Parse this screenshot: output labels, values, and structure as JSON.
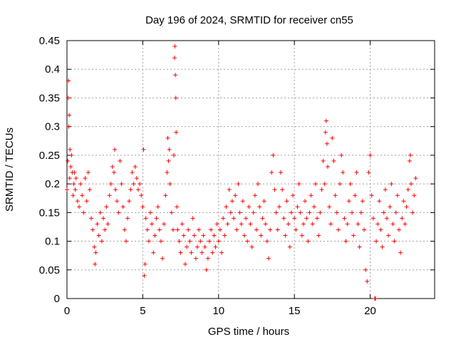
{
  "chart_data": {
    "type": "scatter",
    "title": "Day 196 of 2024, SRMTID for receiver cn55",
    "xlabel": "GPS time / hours",
    "ylabel": "SRMTID / TECUs",
    "xlim": [
      0,
      24.25
    ],
    "ylim": [
      0,
      0.45
    ],
    "xticks": [
      0,
      5,
      10,
      15,
      20
    ],
    "yticks": [
      0,
      0.05,
      0.1,
      0.15,
      0.2,
      0.25,
      0.3,
      0.35,
      0.4,
      0.45
    ],
    "grid": true,
    "marker": "+",
    "color": "#ff0000",
    "series": [
      {
        "name": "SRMTID",
        "points": [
          [
            0.0,
            0.19
          ],
          [
            0.05,
            0.24
          ],
          [
            0.08,
            0.35
          ],
          [
            0.1,
            0.38
          ],
          [
            0.12,
            0.3
          ],
          [
            0.15,
            0.32
          ],
          [
            0.18,
            0.21
          ],
          [
            0.2,
            0.26
          ],
          [
            0.25,
            0.23
          ],
          [
            0.3,
            0.25
          ],
          [
            0.35,
            0.22
          ],
          [
            0.4,
            0.18
          ],
          [
            0.45,
            0.2
          ],
          [
            0.5,
            0.22
          ],
          [
            0.55,
            0.19
          ],
          [
            0.6,
            0.21
          ],
          [
            0.7,
            0.17
          ],
          [
            0.8,
            0.16
          ],
          [
            0.9,
            0.2
          ],
          [
            1.0,
            0.18
          ],
          [
            1.1,
            0.15
          ],
          [
            1.2,
            0.21
          ],
          [
            1.3,
            0.17
          ],
          [
            1.4,
            0.22
          ],
          [
            1.5,
            0.19
          ],
          [
            1.6,
            0.14
          ],
          [
            1.7,
            0.12
          ],
          [
            1.8,
            0.09
          ],
          [
            1.85,
            0.06
          ],
          [
            1.9,
            0.08
          ],
          [
            2.0,
            0.13
          ],
          [
            2.1,
            0.11
          ],
          [
            2.2,
            0.15
          ],
          [
            2.3,
            0.1
          ],
          [
            2.4,
            0.14
          ],
          [
            2.5,
            0.12
          ],
          [
            2.6,
            0.16
          ],
          [
            2.7,
            0.13
          ],
          [
            2.8,
            0.18
          ],
          [
            2.9,
            0.2
          ],
          [
            3.0,
            0.23
          ],
          [
            3.1,
            0.22
          ],
          [
            3.15,
            0.26
          ],
          [
            3.2,
            0.19
          ],
          [
            3.3,
            0.17
          ],
          [
            3.4,
            0.15
          ],
          [
            3.5,
            0.24
          ],
          [
            3.6,
            0.2
          ],
          [
            3.7,
            0.16
          ],
          [
            3.8,
            0.12
          ],
          [
            3.9,
            0.1
          ],
          [
            4.0,
            0.14
          ],
          [
            4.1,
            0.17
          ],
          [
            4.2,
            0.19
          ],
          [
            4.3,
            0.22
          ],
          [
            4.4,
            0.2
          ],
          [
            4.5,
            0.23
          ],
          [
            4.6,
            0.21
          ],
          [
            4.7,
            0.19
          ],
          [
            4.8,
            0.2
          ],
          [
            4.9,
            0.18
          ],
          [
            5.0,
            0.16
          ],
          [
            5.05,
            0.26
          ],
          [
            5.1,
            0.04
          ],
          [
            5.15,
            0.06
          ],
          [
            5.2,
            0.14
          ],
          [
            5.3,
            0.12
          ],
          [
            5.4,
            0.1
          ],
          [
            5.5,
            0.15
          ],
          [
            5.6,
            0.13
          ],
          [
            5.7,
            0.08
          ],
          [
            5.8,
            0.11
          ],
          [
            5.9,
            0.14
          ],
          [
            6.0,
            0.16
          ],
          [
            6.1,
            0.12
          ],
          [
            6.2,
            0.1
          ],
          [
            6.3,
            0.07
          ],
          [
            6.4,
            0.13
          ],
          [
            6.5,
            0.18
          ],
          [
            6.6,
            0.22
          ],
          [
            6.65,
            0.28
          ],
          [
            6.7,
            0.24
          ],
          [
            6.75,
            0.26
          ],
          [
            6.8,
            0.2
          ],
          [
            6.9,
            0.15
          ],
          [
            7.0,
            0.12
          ],
          [
            7.05,
            0.25
          ],
          [
            7.1,
            0.42
          ],
          [
            7.12,
            0.44
          ],
          [
            7.15,
            0.39
          ],
          [
            7.18,
            0.35
          ],
          [
            7.2,
            0.29
          ],
          [
            7.25,
            0.16
          ],
          [
            7.3,
            0.12
          ],
          [
            7.4,
            0.1
          ],
          [
            7.5,
            0.08
          ],
          [
            7.6,
            0.13
          ],
          [
            7.7,
            0.11
          ],
          [
            7.8,
            0.06
          ],
          [
            7.9,
            0.09
          ],
          [
            8.0,
            0.12
          ],
          [
            8.1,
            0.1
          ],
          [
            8.2,
            0.08
          ],
          [
            8.3,
            0.14
          ],
          [
            8.4,
            0.11
          ],
          [
            8.5,
            0.07
          ],
          [
            8.6,
            0.09
          ],
          [
            8.7,
            0.12
          ],
          [
            8.8,
            0.1
          ],
          [
            8.9,
            0.08
          ],
          [
            9.0,
            0.11
          ],
          [
            9.1,
            0.09
          ],
          [
            9.2,
            0.05
          ],
          [
            9.3,
            0.07
          ],
          [
            9.4,
            0.1
          ],
          [
            9.5,
            0.12
          ],
          [
            9.6,
            0.08
          ],
          [
            9.7,
            0.11
          ],
          [
            9.8,
            0.09
          ],
          [
            9.9,
            0.13
          ],
          [
            10.0,
            0.1
          ],
          [
            10.1,
            0.12
          ],
          [
            10.2,
            0.08
          ],
          [
            10.3,
            0.14
          ],
          [
            10.4,
            0.11
          ],
          [
            10.5,
            0.16
          ],
          [
            10.6,
            0.13
          ],
          [
            10.7,
            0.19
          ],
          [
            10.8,
            0.15
          ],
          [
            10.9,
            0.17
          ],
          [
            11.0,
            0.14
          ],
          [
            11.1,
            0.18
          ],
          [
            11.2,
            0.12
          ],
          [
            11.3,
            0.2
          ],
          [
            11.4,
            0.15
          ],
          [
            11.5,
            0.13
          ],
          [
            11.6,
            0.17
          ],
          [
            11.7,
            0.11
          ],
          [
            11.8,
            0.14
          ],
          [
            11.9,
            0.1
          ],
          [
            12.0,
            0.16
          ],
          [
            12.1,
            0.13
          ],
          [
            12.2,
            0.09
          ],
          [
            12.3,
            0.15
          ],
          [
            12.4,
            0.18
          ],
          [
            12.5,
            0.12
          ],
          [
            12.6,
            0.2
          ],
          [
            12.7,
            0.16
          ],
          [
            12.8,
            0.11
          ],
          [
            12.9,
            0.14
          ],
          [
            13.0,
            0.17
          ],
          [
            13.1,
            0.13
          ],
          [
            13.2,
            0.1
          ],
          [
            13.3,
            0.07
          ],
          [
            13.4,
            0.12
          ],
          [
            13.5,
            0.22
          ],
          [
            13.6,
            0.25
          ],
          [
            13.7,
            0.19
          ],
          [
            13.8,
            0.15
          ],
          [
            13.9,
            0.12
          ],
          [
            14.0,
            0.16
          ],
          [
            14.1,
            0.22
          ],
          [
            14.2,
            0.19
          ],
          [
            14.3,
            0.14
          ],
          [
            14.4,
            0.11
          ],
          [
            14.5,
            0.17
          ],
          [
            14.6,
            0.13
          ],
          [
            14.7,
            0.09
          ],
          [
            14.8,
            0.15
          ],
          [
            14.9,
            0.18
          ],
          [
            15.0,
            0.14
          ],
          [
            15.1,
            0.12
          ],
          [
            15.2,
            0.16
          ],
          [
            15.3,
            0.2
          ],
          [
            15.4,
            0.15
          ],
          [
            15.5,
            0.11
          ],
          [
            15.6,
            0.13
          ],
          [
            15.7,
            0.17
          ],
          [
            15.8,
            0.14
          ],
          [
            15.9,
            0.1
          ],
          [
            16.0,
            0.15
          ],
          [
            16.1,
            0.18
          ],
          [
            16.2,
            0.13
          ],
          [
            16.3,
            0.16
          ],
          [
            16.4,
            0.2
          ],
          [
            16.5,
            0.14
          ],
          [
            16.6,
            0.11
          ],
          [
            16.7,
            0.15
          ],
          [
            16.8,
            0.19
          ],
          [
            16.9,
            0.24
          ],
          [
            17.0,
            0.2
          ],
          [
            17.05,
            0.29
          ],
          [
            17.1,
            0.31
          ],
          [
            17.15,
            0.27
          ],
          [
            17.2,
            0.23
          ],
          [
            17.3,
            0.16
          ],
          [
            17.4,
            0.13
          ],
          [
            17.5,
            0.28
          ],
          [
            17.6,
            0.24
          ],
          [
            17.7,
            0.18
          ],
          [
            17.8,
            0.15
          ],
          [
            17.9,
            0.12
          ],
          [
            18.0,
            0.2
          ],
          [
            18.1,
            0.25
          ],
          [
            18.2,
            0.22
          ],
          [
            18.3,
            0.14
          ],
          [
            18.4,
            0.1
          ],
          [
            18.5,
            0.13
          ],
          [
            18.6,
            0.17
          ],
          [
            18.7,
            0.2
          ],
          [
            18.8,
            0.15
          ],
          [
            18.9,
            0.11
          ],
          [
            19.0,
            0.18
          ],
          [
            19.1,
            0.22
          ],
          [
            19.2,
            0.13
          ],
          [
            19.3,
            0.09
          ],
          [
            19.4,
            0.15
          ],
          [
            19.5,
            0.17
          ],
          [
            19.6,
            0.12
          ],
          [
            19.7,
            0.05
          ],
          [
            19.8,
            0.03
          ],
          [
            19.9,
            0.22
          ],
          [
            20.0,
            0.25
          ],
          [
            20.1,
            0.18
          ],
          [
            20.2,
            0.14
          ],
          [
            20.3,
            0.0
          ],
          [
            20.35,
            0.0
          ],
          [
            20.4,
            0.1
          ],
          [
            20.5,
            0.13
          ],
          [
            20.6,
            0.17
          ],
          [
            20.7,
            0.12
          ],
          [
            20.8,
            0.09
          ],
          [
            20.9,
            0.15
          ],
          [
            21.0,
            0.19
          ],
          [
            21.1,
            0.14
          ],
          [
            21.2,
            0.11
          ],
          [
            21.3,
            0.16
          ],
          [
            21.4,
            0.2
          ],
          [
            21.5,
            0.13
          ],
          [
            21.6,
            0.1
          ],
          [
            21.7,
            0.15
          ],
          [
            21.8,
            0.18
          ],
          [
            21.9,
            0.12
          ],
          [
            22.0,
            0.08
          ],
          [
            22.1,
            0.14
          ],
          [
            22.2,
            0.17
          ],
          [
            22.3,
            0.13
          ],
          [
            22.4,
            0.16
          ],
          [
            22.5,
            0.19
          ],
          [
            22.6,
            0.24
          ],
          [
            22.65,
            0.25
          ],
          [
            22.7,
            0.2
          ],
          [
            22.8,
            0.15
          ],
          [
            22.9,
            0.18
          ],
          [
            23.0,
            0.21
          ]
        ]
      }
    ]
  }
}
